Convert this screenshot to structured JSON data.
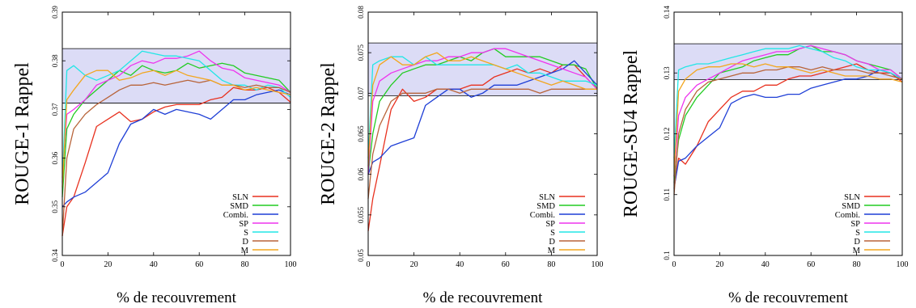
{
  "xlabel": "% de recouvrement",
  "colors": {
    "SLN": "#e8311f",
    "SMD": "#22cc22",
    "Combi.": "#1f3fd6",
    "SP": "#ee33ee",
    "S": "#22e6e6",
    "D": "#b8643a",
    "M": "#f2a61e",
    "band": "#dcdcf6"
  },
  "chart_data": [
    {
      "type": "line",
      "ylabel": "ROUGE-1 Rappel",
      "xlim": [
        0,
        100
      ],
      "ylim": [
        0.34,
        0.39
      ],
      "xticks": [
        "0",
        "20",
        "40",
        "60",
        "80",
        "100"
      ],
      "yticks": [
        "0.34",
        "0.35",
        "0.36",
        "0.37",
        "0.38",
        "0.39"
      ],
      "band": [
        0.3713,
        0.3825
      ],
      "legend_position": "lower-right",
      "x": [
        0,
        2,
        5,
        10,
        15,
        20,
        25,
        30,
        35,
        40,
        45,
        50,
        55,
        60,
        65,
        70,
        75,
        80,
        85,
        90,
        95,
        100
      ],
      "series": [
        {
          "name": "SLN",
          "values": [
            0.344,
            0.35,
            0.352,
            0.359,
            0.3665,
            0.368,
            0.3695,
            0.3675,
            0.368,
            0.3695,
            0.3705,
            0.371,
            0.371,
            0.371,
            0.372,
            0.3725,
            0.3745,
            0.374,
            0.374,
            0.3745,
            0.3735,
            0.3715
          ]
        },
        {
          "name": "SMD",
          "values": [
            0.352,
            0.366,
            0.369,
            0.372,
            0.374,
            0.376,
            0.378,
            0.377,
            0.379,
            0.378,
            0.3775,
            0.378,
            0.3795,
            0.3785,
            0.379,
            0.3795,
            0.379,
            0.3775,
            0.377,
            0.3765,
            0.376,
            0.3735
          ]
        },
        {
          "name": "Combi.",
          "values": [
            0.35,
            0.351,
            0.352,
            0.353,
            0.355,
            0.357,
            0.363,
            0.367,
            0.368,
            0.37,
            0.369,
            0.37,
            0.3695,
            0.369,
            0.368,
            0.37,
            0.372,
            0.372,
            0.373,
            0.3735,
            0.374,
            0.373
          ]
        },
        {
          "name": "SP",
          "values": [
            0.356,
            0.369,
            0.37,
            0.372,
            0.375,
            0.376,
            0.377,
            0.379,
            0.38,
            0.3795,
            0.3805,
            0.3805,
            0.381,
            0.382,
            0.38,
            0.3785,
            0.378,
            0.3765,
            0.376,
            0.3755,
            0.375,
            0.3735
          ]
        },
        {
          "name": "S",
          "values": [
            0.355,
            0.378,
            0.379,
            0.377,
            0.376,
            0.377,
            0.378,
            0.38,
            0.382,
            0.3815,
            0.381,
            0.381,
            0.3805,
            0.38,
            0.378,
            0.376,
            0.375,
            0.375,
            0.374,
            0.375,
            0.3745,
            0.3725
          ]
        },
        {
          "name": "D",
          "values": [
            0.344,
            0.36,
            0.366,
            0.369,
            0.371,
            0.3725,
            0.374,
            0.375,
            0.375,
            0.3755,
            0.375,
            0.3755,
            0.376,
            0.3755,
            0.376,
            0.375,
            0.375,
            0.3745,
            0.375,
            0.3745,
            0.3745,
            0.3735
          ]
        },
        {
          "name": "M",
          "values": [
            0.354,
            0.372,
            0.374,
            0.377,
            0.378,
            0.378,
            0.376,
            0.3765,
            0.3775,
            0.378,
            0.377,
            0.378,
            0.377,
            0.3765,
            0.376,
            0.375,
            0.375,
            0.374,
            0.3745,
            0.374,
            0.3735,
            0.373
          ]
        }
      ]
    },
    {
      "type": "line",
      "ylabel": "ROUGE-2 Rappel",
      "xlim": [
        0,
        100
      ],
      "ylim": [
        0.05,
        0.08
      ],
      "xticks": [
        "0",
        "20",
        "40",
        "60",
        "80",
        "100"
      ],
      "yticks": [
        "0.05",
        "0.055",
        "0.06",
        "0.065",
        "0.07",
        "0.075",
        "0.08"
      ],
      "band": [
        0.0697,
        0.0762
      ],
      "legend_position": "lower-right",
      "x": [
        0,
        2,
        5,
        10,
        15,
        20,
        25,
        30,
        35,
        40,
        45,
        50,
        55,
        60,
        65,
        70,
        75,
        80,
        85,
        90,
        95,
        100
      ],
      "series": [
        {
          "name": "SLN",
          "values": [
            0.053,
            0.057,
            0.061,
            0.068,
            0.0705,
            0.069,
            0.0695,
            0.0705,
            0.0705,
            0.0705,
            0.071,
            0.071,
            0.072,
            0.0725,
            0.073,
            0.0725,
            0.073,
            0.0725,
            0.0735,
            0.0735,
            0.072,
            0.0705
          ]
        },
        {
          "name": "SMD",
          "values": [
            0.06,
            0.065,
            0.069,
            0.071,
            0.0725,
            0.073,
            0.0735,
            0.0735,
            0.074,
            0.0745,
            0.074,
            0.075,
            0.0755,
            0.0745,
            0.0745,
            0.0745,
            0.0745,
            0.074,
            0.0735,
            0.0735,
            0.073,
            0.0705
          ]
        },
        {
          "name": "Combi.",
          "values": [
            0.06,
            0.0615,
            0.062,
            0.0635,
            0.064,
            0.0645,
            0.0685,
            0.0695,
            0.0705,
            0.0705,
            0.0695,
            0.07,
            0.071,
            0.071,
            0.071,
            0.0715,
            0.072,
            0.0725,
            0.073,
            0.074,
            0.0725,
            0.071
          ]
        },
        {
          "name": "SP",
          "values": [
            0.06,
            0.069,
            0.0715,
            0.0725,
            0.073,
            0.0735,
            0.074,
            0.074,
            0.0745,
            0.0745,
            0.075,
            0.075,
            0.0755,
            0.0755,
            0.075,
            0.0745,
            0.074,
            0.0735,
            0.073,
            0.0725,
            0.072,
            0.0705
          ]
        },
        {
          "name": "S",
          "values": [
            0.062,
            0.0735,
            0.074,
            0.0745,
            0.0745,
            0.0735,
            0.0745,
            0.0735,
            0.0735,
            0.0735,
            0.0735,
            0.0735,
            0.0735,
            0.073,
            0.0735,
            0.0725,
            0.0725,
            0.072,
            0.0715,
            0.0715,
            0.0715,
            0.071
          ]
        },
        {
          "name": "D",
          "values": [
            0.057,
            0.0625,
            0.066,
            0.069,
            0.07,
            0.07,
            0.07,
            0.0705,
            0.0705,
            0.07,
            0.0705,
            0.0705,
            0.0705,
            0.0705,
            0.0705,
            0.0705,
            0.07,
            0.0705,
            0.0705,
            0.0705,
            0.0705,
            0.0705
          ]
        },
        {
          "name": "M",
          "values": [
            0.061,
            0.071,
            0.0735,
            0.0745,
            0.0735,
            0.0735,
            0.0745,
            0.075,
            0.074,
            0.074,
            0.0745,
            0.074,
            0.0735,
            0.073,
            0.0725,
            0.072,
            0.0715,
            0.071,
            0.0715,
            0.071,
            0.0705,
            0.0705
          ]
        }
      ]
    },
    {
      "type": "line",
      "ylabel": "ROUGE-SU4 Rappel",
      "xlim": [
        0,
        100
      ],
      "ylim": [
        0.1,
        0.14
      ],
      "xticks": [
        "0",
        "20",
        "40",
        "60",
        "80",
        "100"
      ],
      "yticks": [
        "0.1",
        "0.11",
        "0.12",
        "0.13",
        "0.14"
      ],
      "band": [
        0.1289,
        0.1348
      ],
      "legend_position": "lower-right",
      "x": [
        0,
        2,
        5,
        10,
        15,
        20,
        25,
        30,
        35,
        40,
        45,
        50,
        55,
        60,
        65,
        70,
        75,
        80,
        85,
        90,
        95,
        100
      ],
      "series": [
        {
          "name": "SLN",
          "values": [
            0.111,
            0.116,
            0.115,
            0.118,
            0.122,
            0.124,
            0.126,
            0.127,
            0.127,
            0.128,
            0.128,
            0.129,
            0.1295,
            0.1295,
            0.13,
            0.1305,
            0.131,
            0.1315,
            0.1305,
            0.13,
            0.13,
            0.1285
          ]
        },
        {
          "name": "SMD",
          "values": [
            0.112,
            0.119,
            0.123,
            0.126,
            0.128,
            0.13,
            0.1305,
            0.131,
            0.132,
            0.1325,
            0.133,
            0.133,
            0.134,
            0.1345,
            0.1335,
            0.1335,
            0.133,
            0.132,
            0.1315,
            0.131,
            0.1305,
            0.129
          ]
        },
        {
          "name": "Combi.",
          "values": [
            0.111,
            0.1155,
            0.116,
            0.118,
            0.1195,
            0.121,
            0.125,
            0.126,
            0.1265,
            0.126,
            0.126,
            0.1265,
            0.1265,
            0.1275,
            0.128,
            0.1285,
            0.129,
            0.129,
            0.1295,
            0.1305,
            0.13,
            0.129
          ]
        },
        {
          "name": "SP",
          "values": [
            0.113,
            0.123,
            0.126,
            0.128,
            0.129,
            0.13,
            0.131,
            0.132,
            0.1325,
            0.133,
            0.1335,
            0.1335,
            0.134,
            0.1345,
            0.134,
            0.1335,
            0.133,
            0.132,
            0.1315,
            0.1305,
            0.1305,
            0.129
          ]
        },
        {
          "name": "S",
          "values": [
            0.116,
            0.1305,
            0.131,
            0.1315,
            0.1315,
            0.132,
            0.1325,
            0.133,
            0.1335,
            0.134,
            0.134,
            0.134,
            0.1345,
            0.134,
            0.1335,
            0.1325,
            0.132,
            0.131,
            0.1305,
            0.1305,
            0.13,
            0.129
          ]
        },
        {
          "name": "D",
          "values": [
            0.11,
            0.12,
            0.124,
            0.127,
            0.1285,
            0.129,
            0.1295,
            0.13,
            0.13,
            0.1305,
            0.1305,
            0.131,
            0.131,
            0.1305,
            0.131,
            0.1305,
            0.1305,
            0.1305,
            0.13,
            0.13,
            0.1295,
            0.129
          ]
        },
        {
          "name": "M",
          "values": [
            0.113,
            0.127,
            0.129,
            0.1305,
            0.131,
            0.131,
            0.1315,
            0.1315,
            0.131,
            0.1315,
            0.131,
            0.131,
            0.1305,
            0.13,
            0.1305,
            0.13,
            0.1295,
            0.1295,
            0.1295,
            0.129,
            0.129,
            0.1285
          ]
        }
      ]
    }
  ]
}
